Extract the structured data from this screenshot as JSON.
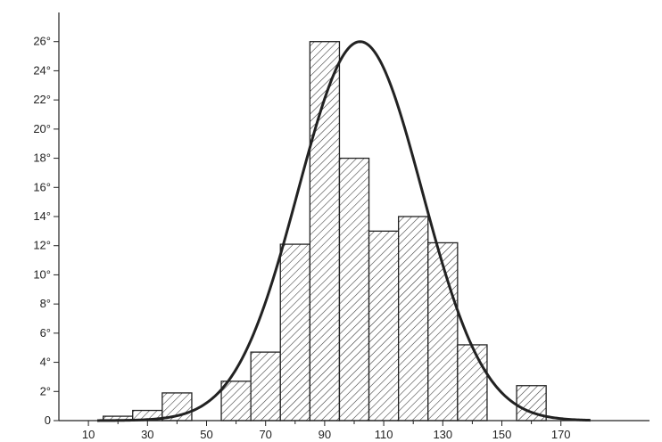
{
  "chart_data": {
    "type": "bar",
    "title": "",
    "xlabel": "",
    "ylabel": "",
    "x_ticks": [
      "10",
      "30",
      "50",
      "70",
      "90",
      "110",
      "130",
      "150",
      "170"
    ],
    "x_tick_values": [
      10,
      30,
      50,
      70,
      90,
      110,
      130,
      150,
      170
    ],
    "y_ticks": [
      "0",
      "2°",
      "4°",
      "6°",
      "8°",
      "10°",
      "12°",
      "14°",
      "16°",
      "18°",
      "20°",
      "22°",
      "24°",
      "26°"
    ],
    "y_tick_values": [
      0,
      2,
      4,
      6,
      8,
      10,
      12,
      14,
      16,
      18,
      20,
      22,
      24,
      26
    ],
    "xlim": [
      0,
      200
    ],
    "ylim": [
      0,
      28
    ],
    "bars": [
      {
        "x0": 15,
        "x1": 25,
        "value": 0.3
      },
      {
        "x0": 25,
        "x1": 35,
        "value": 0.7
      },
      {
        "x0": 35,
        "x1": 45,
        "value": 1.9
      },
      {
        "x0": 55,
        "x1": 65,
        "value": 2.7
      },
      {
        "x0": 65,
        "x1": 75,
        "value": 4.7
      },
      {
        "x0": 75,
        "x1": 85,
        "value": 12.1
      },
      {
        "x0": 85,
        "x1": 95,
        "value": 26.0
      },
      {
        "x0": 95,
        "x1": 105,
        "value": 18.0
      },
      {
        "x0": 105,
        "x1": 115,
        "value": 13.0
      },
      {
        "x0": 115,
        "x1": 125,
        "value": 14.0
      },
      {
        "x0": 125,
        "x1": 135,
        "value": 12.2
      },
      {
        "x0": 135,
        "x1": 145,
        "value": 5.2
      },
      {
        "x0": 155,
        "x1": 165,
        "value": 2.4
      }
    ],
    "curve": {
      "type": "normal",
      "mean": 102,
      "sd": 21,
      "peak": 26,
      "x_range": [
        13,
        180
      ]
    },
    "grid": false,
    "fill": "diagonal-hatch"
  }
}
